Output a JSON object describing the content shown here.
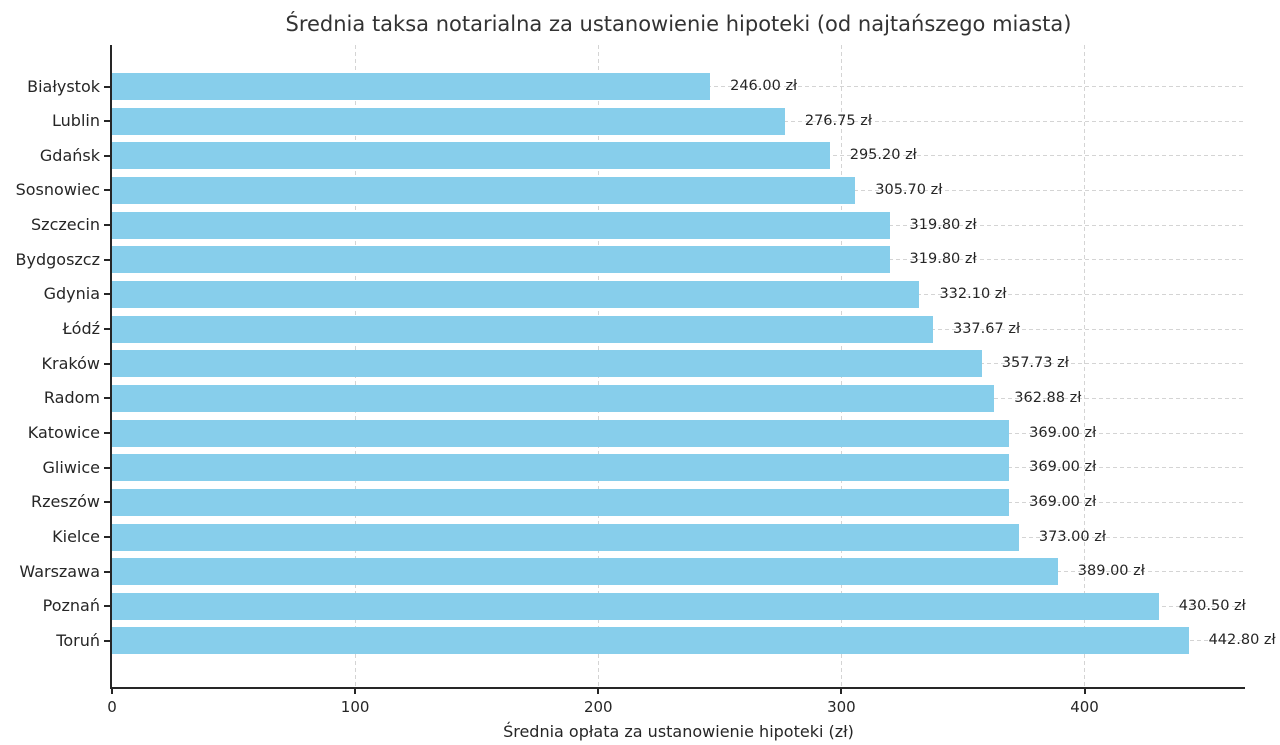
{
  "chart_data": {
    "type": "bar",
    "orientation": "horizontal",
    "title": "Średnia taksa notarialna za ustanowienie hipoteki (od najtańszego miasta)",
    "xlabel": "Średnia opłata za ustanowienie hipoteki (zł)",
    "ylabel": "",
    "categories": [
      "Białystok",
      "Lublin",
      "Gdańsk",
      "Sosnowiec",
      "Szczecin",
      "Bydgoszcz",
      "Gdynia",
      "Łódź",
      "Kraków",
      "Radom",
      "Katowice",
      "Gliwice",
      "Rzeszów",
      "Kielce",
      "Warszawa",
      "Poznań",
      "Toruń"
    ],
    "values": [
      246.0,
      276.75,
      295.2,
      305.7,
      319.8,
      319.8,
      332.1,
      337.67,
      357.73,
      362.88,
      369.0,
      369.0,
      369.0,
      373.0,
      389.0,
      430.5,
      442.8
    ],
    "value_labels": [
      "246.00 zł",
      "276.75 zł",
      "295.20 zł",
      "305.70 zł",
      "319.80 zł",
      "319.80 zł",
      "332.10 zł",
      "337.67 zł",
      "357.73 zł",
      "362.88 zł",
      "369.00 zł",
      "369.00 zł",
      "369.00 zł",
      "373.00 zł",
      "389.00 zł",
      "430.50 zł",
      "442.80 zł"
    ],
    "xticks": [
      0,
      100,
      200,
      300,
      400
    ],
    "xlim": [
      0,
      466
    ],
    "grid": true,
    "grid_style": "dashed",
    "legend_position": "none",
    "bar_color": "#87CEEB",
    "text_color": "#262626",
    "grid_color": "#d4d4d4",
    "background_color": "#ffffff"
  }
}
